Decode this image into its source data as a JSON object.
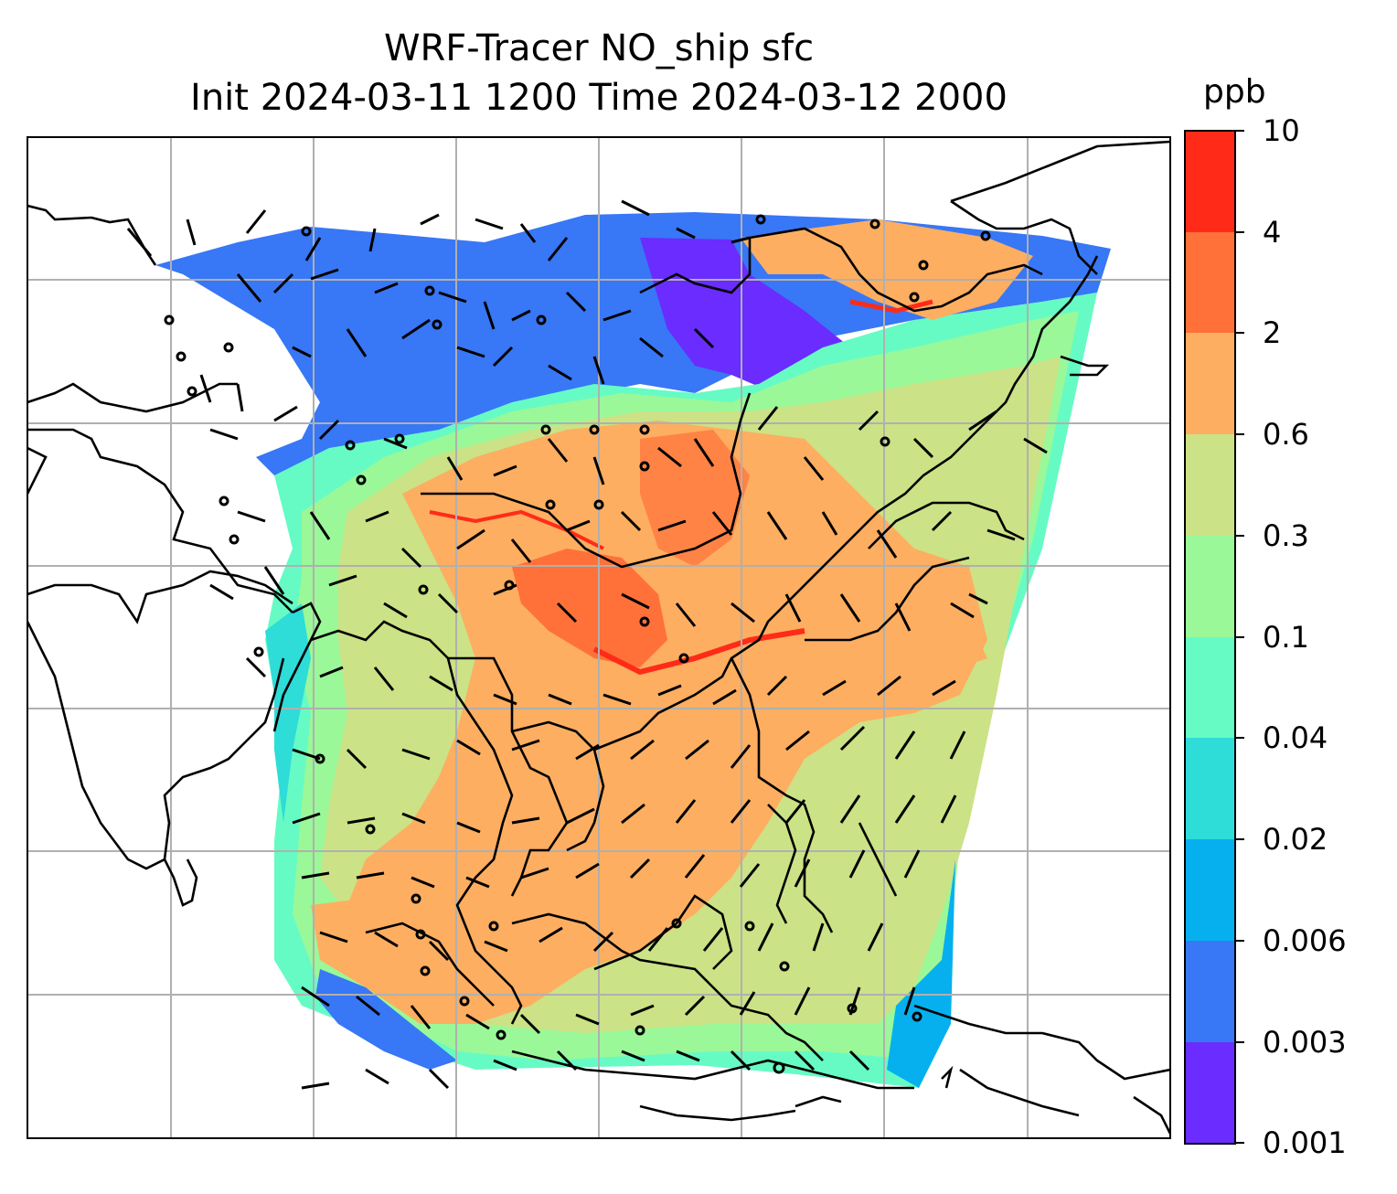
{
  "title": {
    "line1": "WRF-Tracer NO_ship sfc",
    "line2": "Init 2024-03-11 1200 Time 2024-03-12 2000"
  },
  "colorbar": {
    "unit": "ppb",
    "ticks": [
      "0.001",
      "0.003",
      "0.006",
      "0.02",
      "0.04",
      "0.1",
      "0.3",
      "0.6",
      "2",
      "4",
      "10"
    ],
    "colors": [
      "#6a2cff",
      "#3877f5",
      "#06b0ee",
      "#2edcd8",
      "#66fbc4",
      "#9af898",
      "#cbe286",
      "#fdae61",
      "#ff7139",
      "#ff2b18"
    ]
  },
  "map": {
    "background": "#ffffff",
    "coastline_color": "#000000",
    "gridline_color": "#b0b0b0",
    "field_colors": {
      "very_low": "#6a2cff",
      "low": "#3877f5",
      "cyan": "#2edcd8",
      "aqua": "#66fbc4",
      "green": "#9af898",
      "olive": "#cbe286",
      "orange": "#fdae61",
      "dark_orange": "#ff7139",
      "red": "#ff2b18"
    },
    "wind_barbs": "black"
  }
}
